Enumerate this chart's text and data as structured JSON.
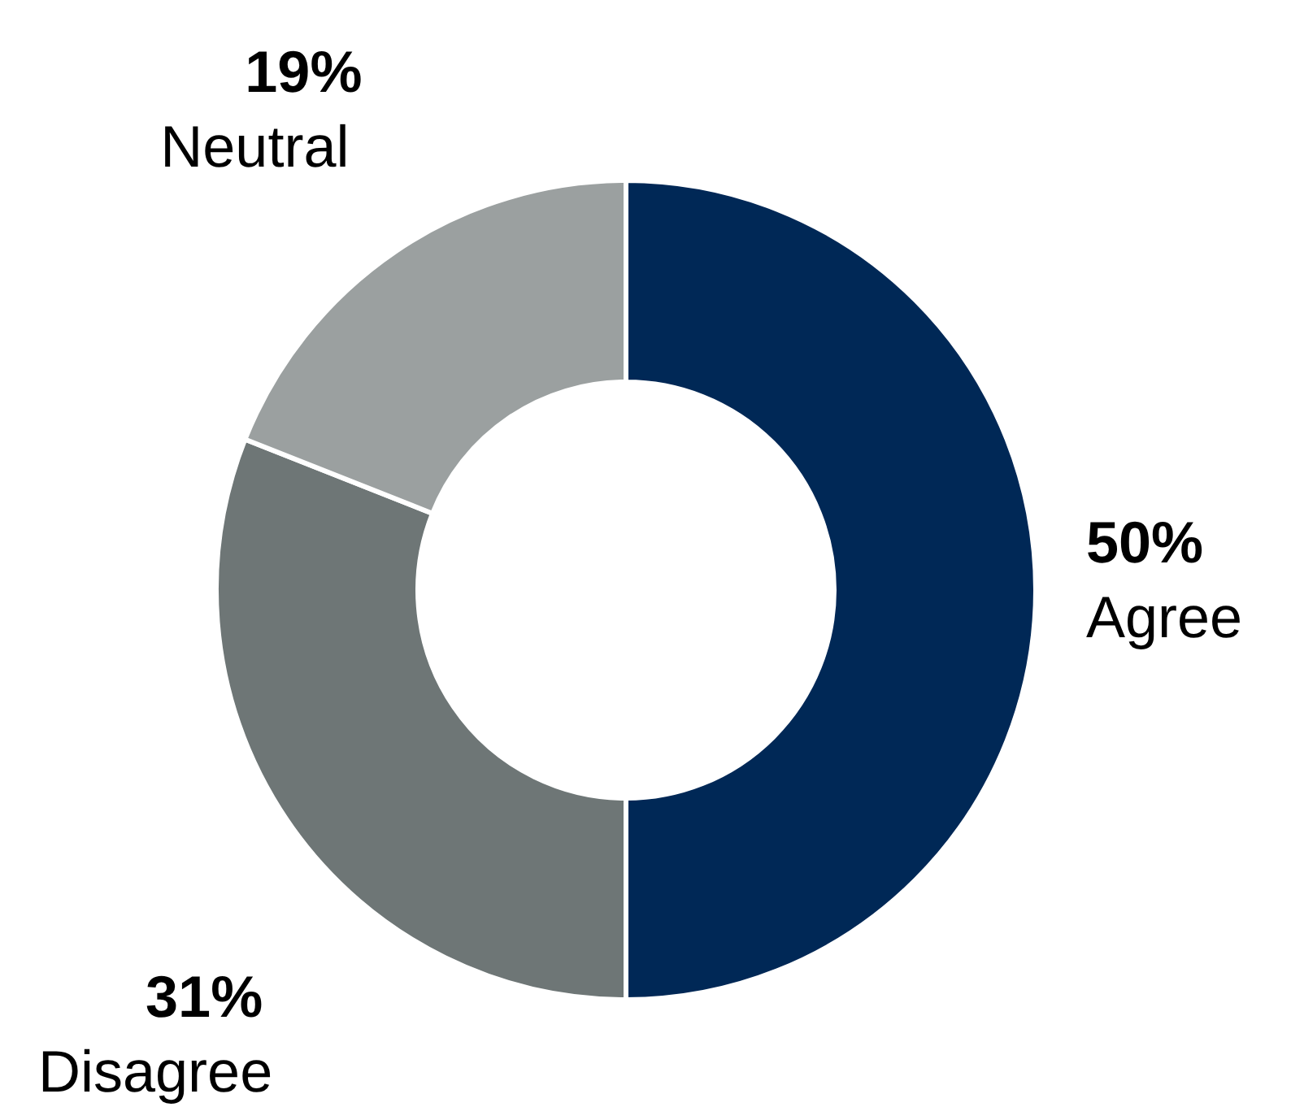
{
  "chart_data": {
    "type": "donut",
    "categories": [
      "Agree",
      "Disagree",
      "Neutral"
    ],
    "values": [
      50,
      31,
      19
    ],
    "colors": [
      "#002856",
      "#6e7676",
      "#9ba0a0"
    ],
    "value_labels": [
      "50%",
      "31%",
      "19%"
    ]
  }
}
